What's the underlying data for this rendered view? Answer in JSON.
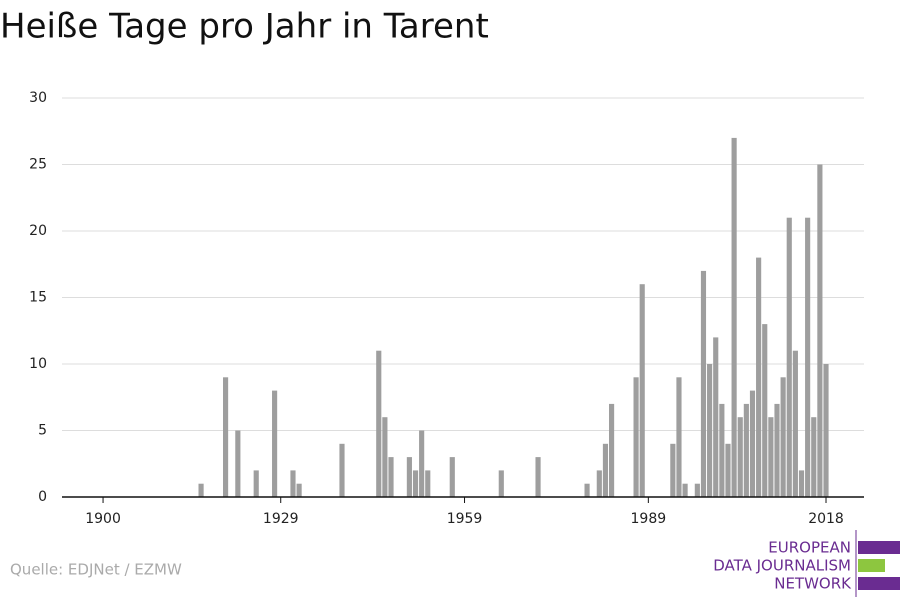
{
  "chart_data": {
    "type": "bar",
    "title": "Heiße Tage pro Jahr in Tarent",
    "source": "Quelle: EDJNet / EZMW",
    "logo": [
      "EUROPEAN",
      "DATA JOURNALISM",
      "NETWORK"
    ],
    "color": "#9e9e9e",
    "x": [
      1900,
      1901,
      1902,
      1903,
      1904,
      1905,
      1906,
      1907,
      1908,
      1909,
      1910,
      1911,
      1912,
      1913,
      1914,
      1915,
      1916,
      1917,
      1918,
      1919,
      1920,
      1921,
      1922,
      1923,
      1924,
      1925,
      1926,
      1927,
      1928,
      1929,
      1930,
      1931,
      1932,
      1933,
      1934,
      1935,
      1936,
      1937,
      1938,
      1939,
      1940,
      1941,
      1942,
      1943,
      1944,
      1945,
      1946,
      1947,
      1948,
      1949,
      1950,
      1951,
      1952,
      1953,
      1954,
      1955,
      1956,
      1957,
      1958,
      1959,
      1960,
      1961,
      1962,
      1963,
      1964,
      1965,
      1966,
      1967,
      1968,
      1969,
      1970,
      1971,
      1972,
      1973,
      1974,
      1975,
      1976,
      1977,
      1978,
      1979,
      1980,
      1981,
      1982,
      1983,
      1984,
      1985,
      1986,
      1987,
      1988,
      1989,
      1990,
      1991,
      1992,
      1993,
      1994,
      1995,
      1996,
      1997,
      1998,
      1999,
      2000,
      2001,
      2002,
      2003,
      2004,
      2005,
      2006,
      2007,
      2008,
      2009,
      2010,
      2011,
      2012,
      2013,
      2014,
      2015,
      2016,
      2017,
      2018
    ],
    "values": [
      0,
      0,
      0,
      0,
      0,
      0,
      0,
      0,
      0,
      0,
      0,
      0,
      0,
      0,
      0,
      0,
      1,
      0,
      0,
      0,
      9,
      0,
      5,
      0,
      0,
      2,
      0,
      0,
      8,
      0,
      0,
      2,
      1,
      0,
      0,
      0,
      0,
      0,
      0,
      4,
      0,
      0,
      0,
      0,
      0,
      11,
      6,
      3,
      0,
      0,
      3,
      2,
      5,
      2,
      0,
      0,
      0,
      3,
      0,
      0,
      0,
      0,
      0,
      0,
      0,
      2,
      0,
      0,
      0,
      0,
      0,
      3,
      0,
      0,
      0,
      0,
      0,
      0,
      0,
      1,
      0,
      2,
      4,
      7,
      0,
      0,
      0,
      9,
      16,
      0,
      0,
      0,
      0,
      4,
      9,
      1,
      0,
      1,
      17,
      10,
      12,
      7,
      4,
      27,
      6,
      7,
      8,
      18,
      13,
      6,
      7,
      9,
      21,
      11,
      2,
      21,
      6,
      25,
      10
    ],
    "xlim": [
      1893.3,
      2024.2
    ],
    "xticks": [
      1900,
      1929,
      1959,
      1989,
      2018
    ],
    "ylim": [
      0,
      30
    ],
    "yticks": [
      0,
      5,
      10,
      15,
      20,
      25,
      30
    ],
    "grid": true
  }
}
